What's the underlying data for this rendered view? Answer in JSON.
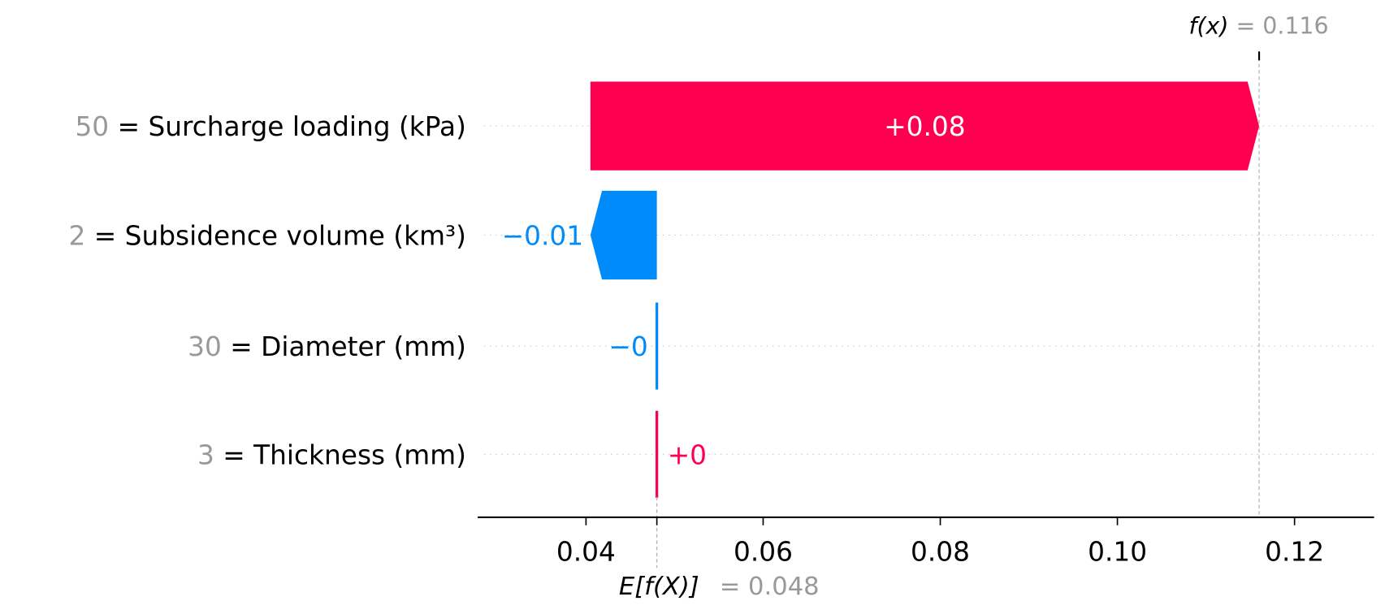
{
  "chart_data": {
    "type": "waterfall",
    "title": "",
    "xlabel": "",
    "ylabel": "",
    "xlim": [
      0.028,
      0.129
    ],
    "xticks": [
      0.04,
      0.06,
      0.08,
      0.1,
      0.12
    ],
    "xtick_labels": [
      "0.04",
      "0.06",
      "0.08",
      "0.10",
      "0.12"
    ],
    "grid": "dotted horizontal per feature row",
    "base_value": 0.048,
    "base_label": {
      "expr": "E[f(X)]",
      "value_text": "= 0.048"
    },
    "output_value": 0.116,
    "output_label": {
      "expr": "f(x)",
      "value_text": "= 0.116"
    },
    "features": [
      {
        "value": "50",
        "name": "= Surcharge loading (kPa)",
        "contribution": 0.0755,
        "label": "+0.08"
      },
      {
        "value": "2",
        "name": "= Subsidence volume (km³)",
        "contribution": -0.0075,
        "label": "−0.01"
      },
      {
        "value": "30",
        "name": "= Diameter (mm)",
        "contribution": -0.0002,
        "label": "−0"
      },
      {
        "value": "3",
        "name": "= Thickness (mm)",
        "contribution": 0.0002,
        "label": "+0"
      }
    ],
    "colors": {
      "positive": "#ff0051",
      "negative": "#008bfb",
      "muted": "#999999",
      "text": "#000000"
    }
  }
}
